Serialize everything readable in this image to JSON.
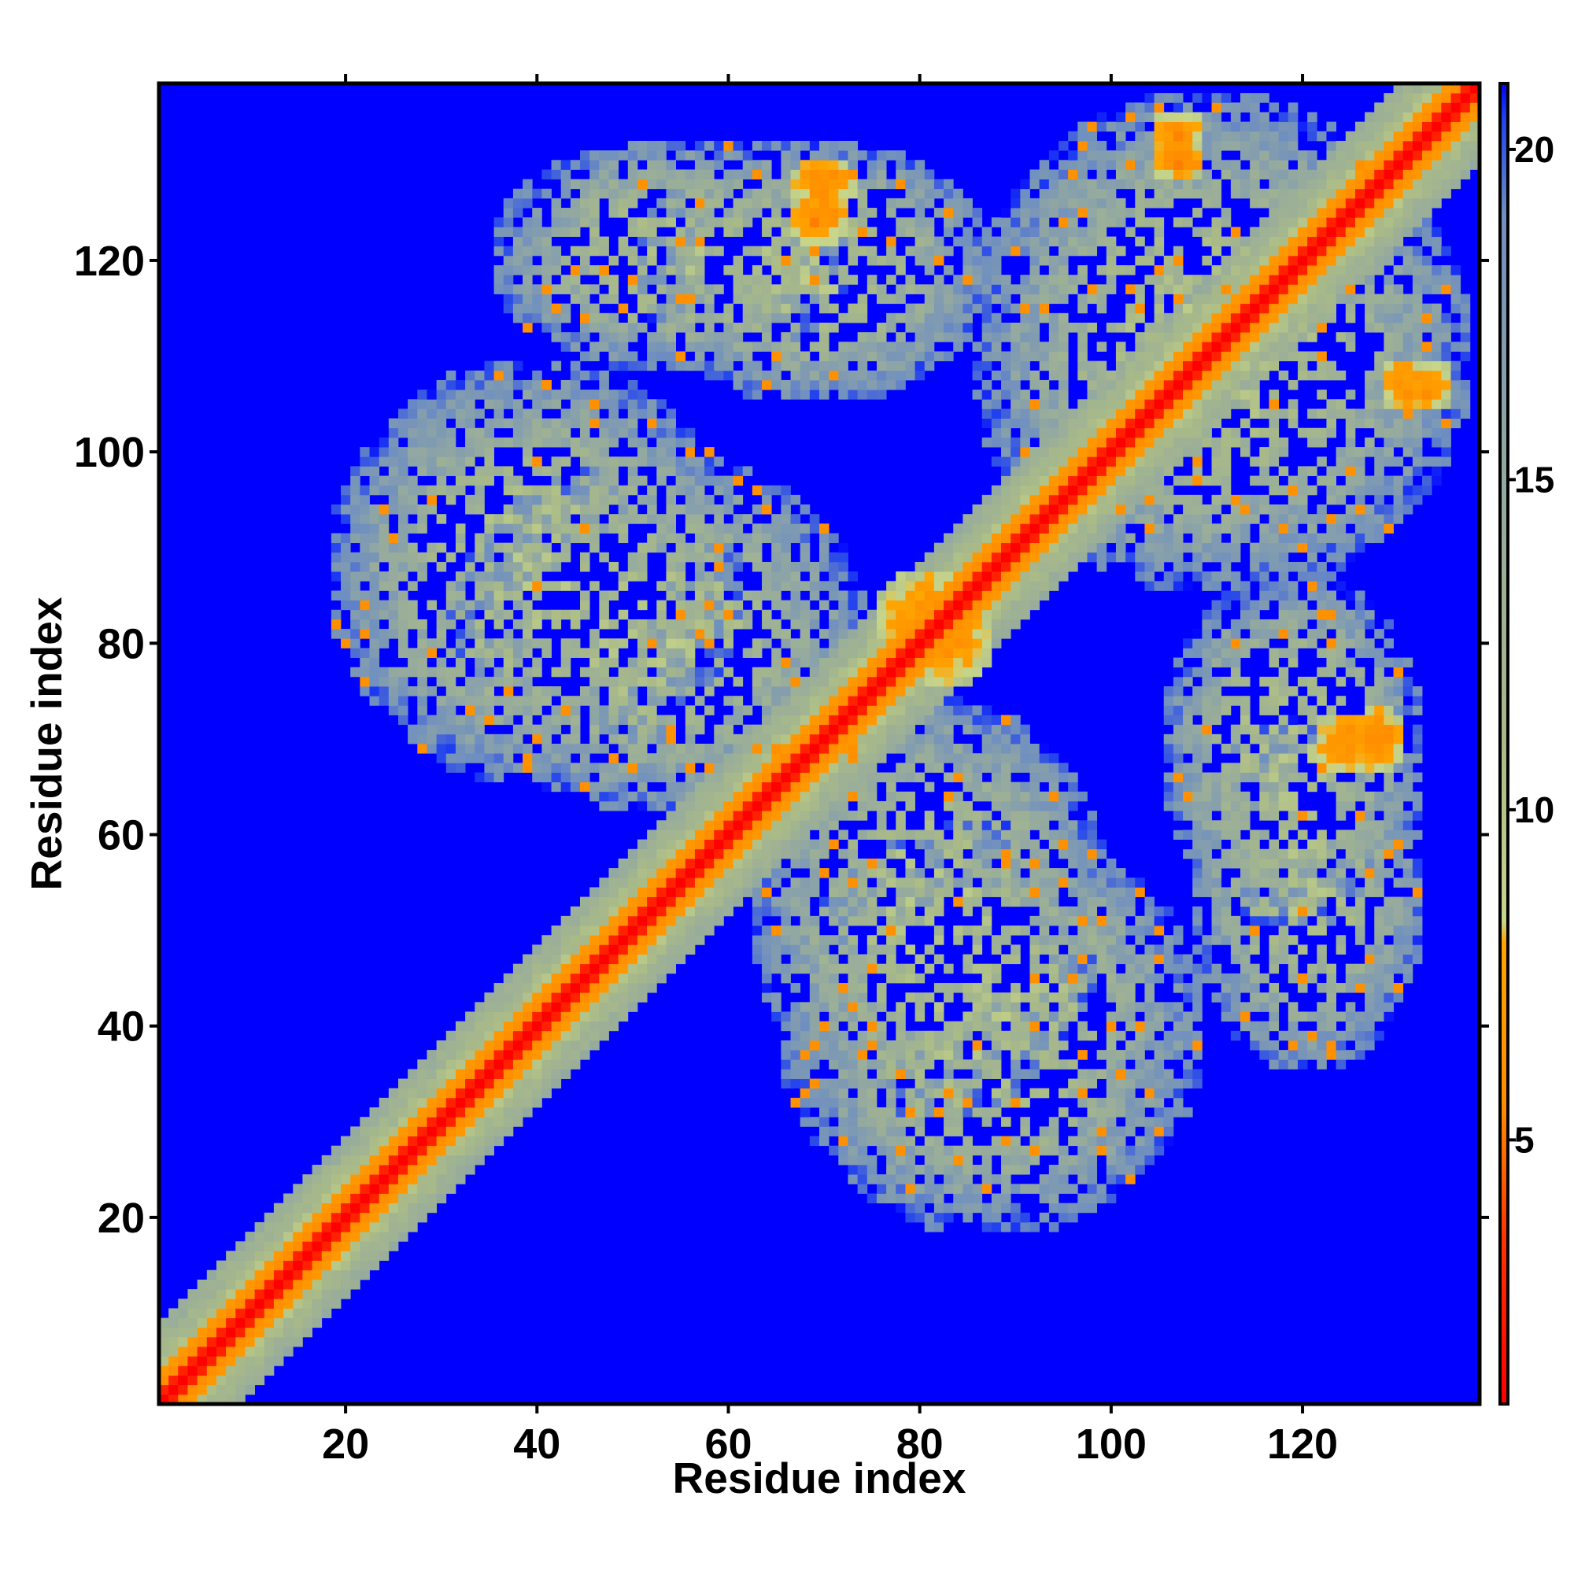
{
  "chart_data": {
    "type": "heatmap",
    "title": "",
    "xlabel": "Residue index",
    "ylabel": "Residue index",
    "xlim": [
      1,
      138
    ],
    "ylim": [
      1,
      138
    ],
    "x_ticks": [
      20,
      40,
      60,
      80,
      100,
      120
    ],
    "y_ticks": [
      20,
      40,
      60,
      80,
      100,
      120
    ],
    "colorbar": {
      "ticks": [
        5,
        10,
        15,
        20
      ],
      "range": [
        1,
        21
      ],
      "colors": {
        "red": "#ff0000",
        "orange": "#ff8c00",
        "light_yellow_green": "#c8d68a",
        "grey_green": "#9fb591",
        "steel_blue": "#6f8fc0",
        "blue": "#0000ff"
      },
      "stops": [
        {
          "value": 1,
          "color": "#ff0000"
        },
        {
          "value": 3.5,
          "color": "#ff3300"
        },
        {
          "value": 5.5,
          "color": "#ff8c00"
        },
        {
          "value": 8,
          "color": "#ffa500"
        },
        {
          "value": 8.3,
          "color": "#c8d68a"
        },
        {
          "value": 11,
          "color": "#a9ba88"
        },
        {
          "value": 15,
          "color": "#94a9a0"
        },
        {
          "value": 19,
          "color": "#6f8fc0"
        },
        {
          "value": 20.5,
          "color": "#2040f0"
        },
        {
          "value": 21,
          "color": "#0000ff"
        }
      ]
    },
    "background_value": 21,
    "matrix_description": "symmetric residue-residue distance map with contact diagonal",
    "features": [
      {
        "region": "diagonal",
        "x": [
          1,
          138
        ],
        "y": [
          1,
          138
        ],
        "value": 1
      },
      {
        "region": "near-diagonal band",
        "x": [
          1,
          138
        ],
        "y": [
          1,
          138
        ],
        "value": 6
      },
      {
        "region": "helix cross-contact",
        "x": [
          66,
          74
        ],
        "y": [
          125,
          131
        ],
        "value": 6
      },
      {
        "region": "helix cross-contact",
        "x": [
          104,
          110
        ],
        "y": [
          130,
          136
        ],
        "value": 6
      },
      {
        "region": "helix cross-contact",
        "x": [
          121,
          128
        ],
        "y": [
          66,
          73
        ],
        "value": 6
      },
      {
        "region": "helix cross-contact",
        "x": [
          128,
          133
        ],
        "y": [
          104,
          110
        ],
        "value": 6
      },
      {
        "region": "cross contact",
        "x": [
          75,
          88
        ],
        "y": [
          77,
          88
        ],
        "value": 6
      },
      {
        "region": "contact cloud",
        "x": [
          30,
          75
        ],
        "y": [
          62,
          100
        ],
        "value": 13
      },
      {
        "region": "contact cloud",
        "x": [
          50,
          88
        ],
        "y": [
          105,
          133
        ],
        "value": 13
      },
      {
        "region": "contact cloud",
        "x": [
          85,
          135
        ],
        "y": [
          85,
          138
        ],
        "value": 13
      },
      {
        "region": "contact cloud",
        "x": [
          65,
          110
        ],
        "y": [
          18,
          62
        ],
        "value": 13
      },
      {
        "region": "contact cloud",
        "x": [
          108,
          133
        ],
        "y": [
          35,
          73
        ],
        "value": 13
      }
    ]
  }
}
